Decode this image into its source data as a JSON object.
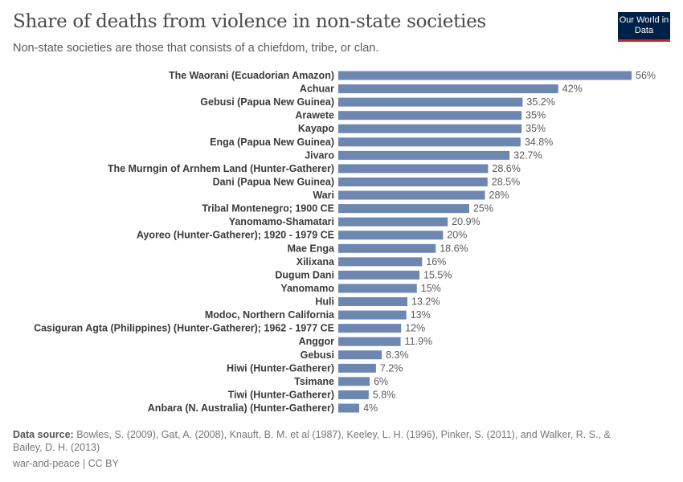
{
  "header": {
    "title": "Share of deaths from violence in non-state societies",
    "subtitle": "Non-state societies are those that consists of a chiefdom, tribe, or clan.",
    "logo": "Our World in Data"
  },
  "footer": {
    "source_label": "Data source:",
    "source_text": " Bowles, S. (2009), Gat, A. (2008), Knauft, B. M. et al (1987), Keeley, L. H. (1996), Pinker, S. (2011), and Walker, R. S., & Bailey, D. H. (2013)",
    "license": "war-and-peace | CC BY"
  },
  "chart_data": {
    "type": "bar",
    "orientation": "horizontal",
    "unit": "%",
    "bar_color": "#6d87b0",
    "categories": [
      "The Waorani (Ecuadorian Amazon)",
      "Achuar",
      "Gebusi (Papua New Guinea)",
      "Arawete",
      "Kayapo",
      "Enga (Papua New Guinea)",
      "Jivaro",
      "The Murngin of Arnhem Land (Hunter-Gatherer)",
      "Dani (Papua New Guinea)",
      "Wari",
      "Tribal Montenegro; 1900 CE",
      "Yanomamo-Shamatari",
      "Ayoreo (Hunter-Gatherer); 1920 - 1979 CE",
      "Mae Enga",
      "Xilixana",
      "Dugum Dani",
      "Yanomamo",
      "Huli",
      "Modoc, Northern California",
      "Casiguran Agta (Philippines) (Hunter-Gatherer); 1962 - 1977 CE",
      "Anggor",
      "Gebusi",
      "Hiwi (Hunter-Gatherer)",
      "Tsimane",
      "Tiwi (Hunter-Gatherer)",
      "Anbara (N. Australia) (Hunter-Gatherer)"
    ],
    "values": [
      56,
      42,
      35.2,
      35,
      35,
      34.8,
      32.7,
      28.6,
      28.5,
      28,
      25,
      20.9,
      20,
      18.6,
      16,
      15.5,
      15,
      13.2,
      13,
      12,
      11.9,
      8.3,
      7.2,
      6,
      5.8,
      4
    ],
    "value_labels": [
      "56%",
      "42%",
      "35.2%",
      "35%",
      "35%",
      "34.8%",
      "32.7%",
      "28.6%",
      "28.5%",
      "28%",
      "25%",
      "20.9%",
      "20%",
      "18.6%",
      "16%",
      "15.5%",
      "15%",
      "13.2%",
      "13%",
      "12%",
      "11.9%",
      "8.3%",
      "7.2%",
      "6%",
      "5.8%",
      "4%"
    ]
  }
}
